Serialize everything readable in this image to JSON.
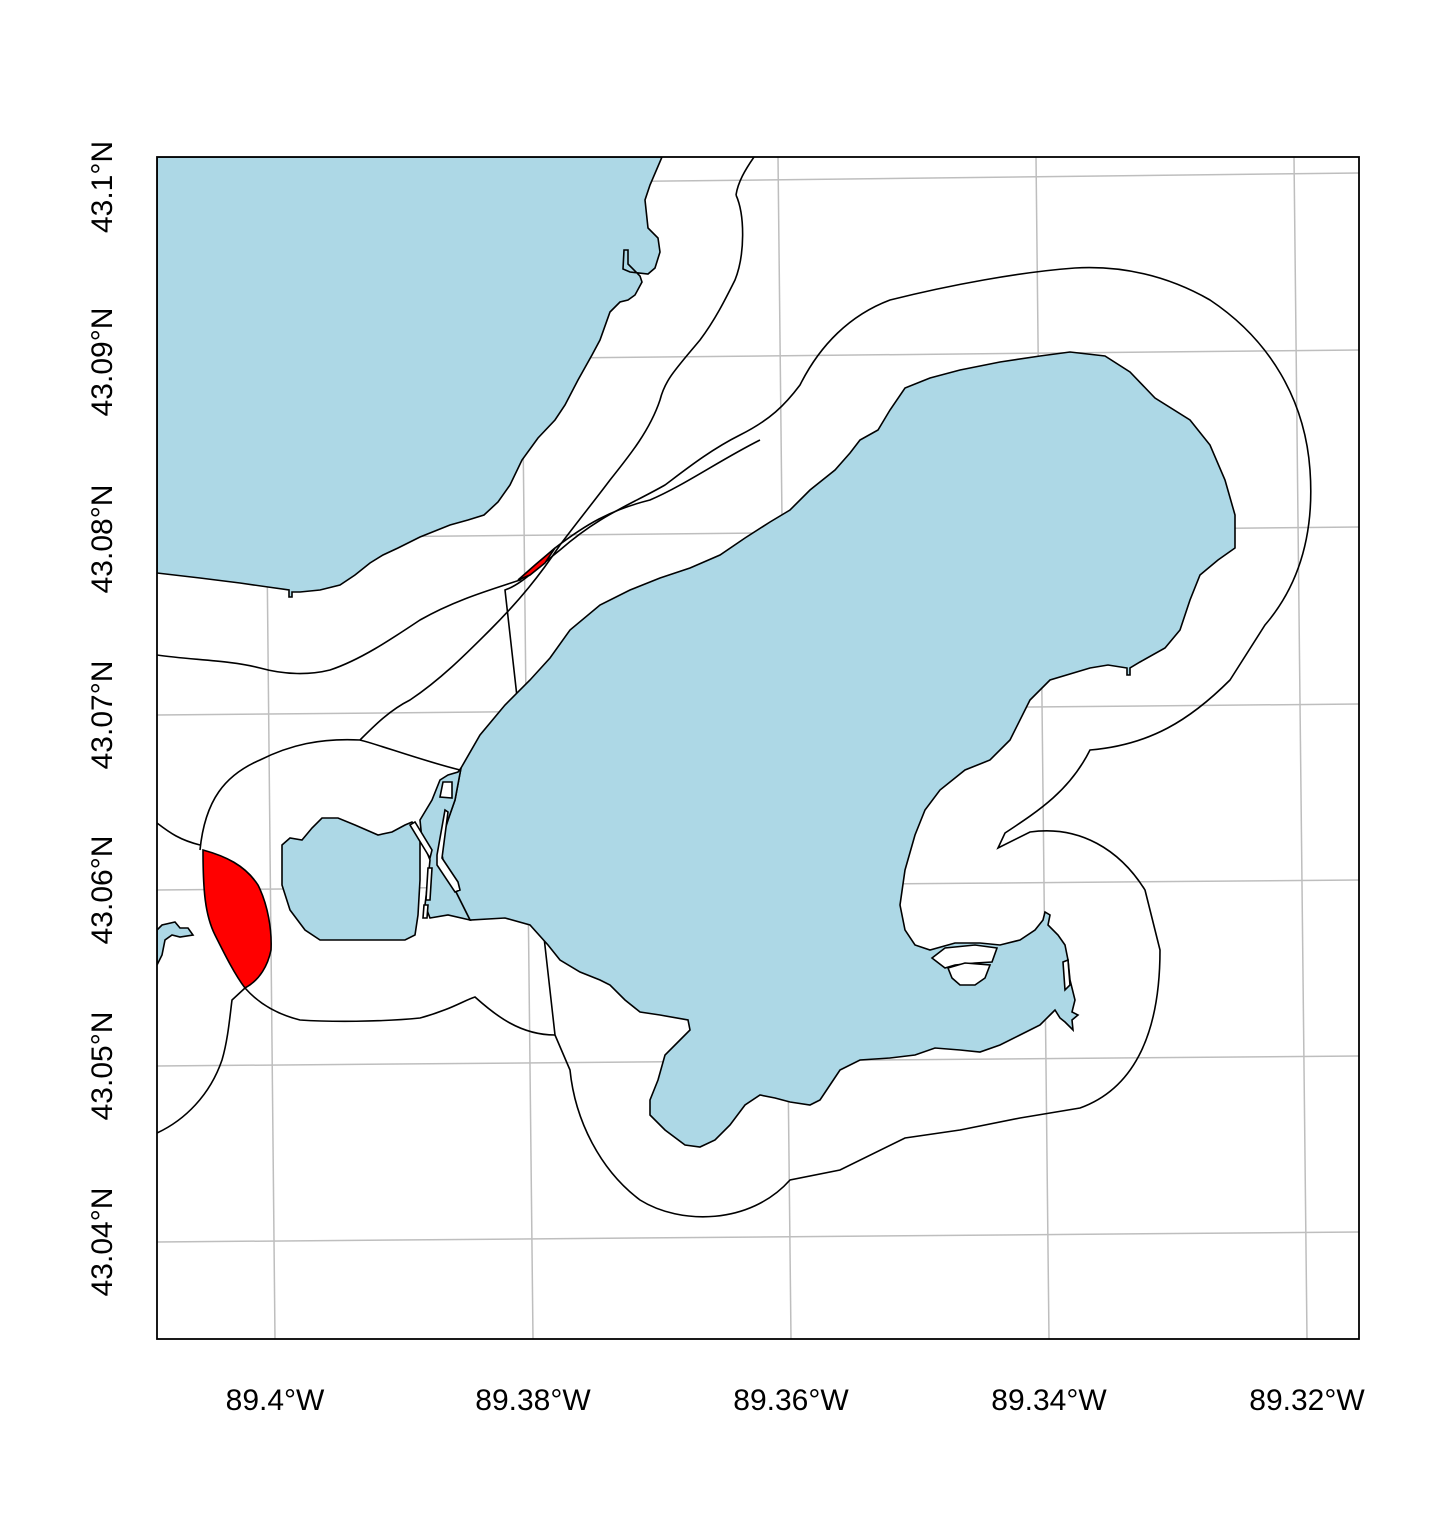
{
  "map": {
    "x_ticks": [
      "89.4°W",
      "89.38°W",
      "89.36°W",
      "89.34°W",
      "89.32°W"
    ],
    "y_ticks": [
      "43.1°N",
      "43.09°N",
      "43.08°N",
      "43.07°N",
      "43.06°N",
      "43.05°N",
      "43.04°N"
    ],
    "colors": {
      "water": "#add8e6",
      "intersection": "#ff0000",
      "graticule": "#bebebe",
      "outline": "#000000"
    }
  }
}
